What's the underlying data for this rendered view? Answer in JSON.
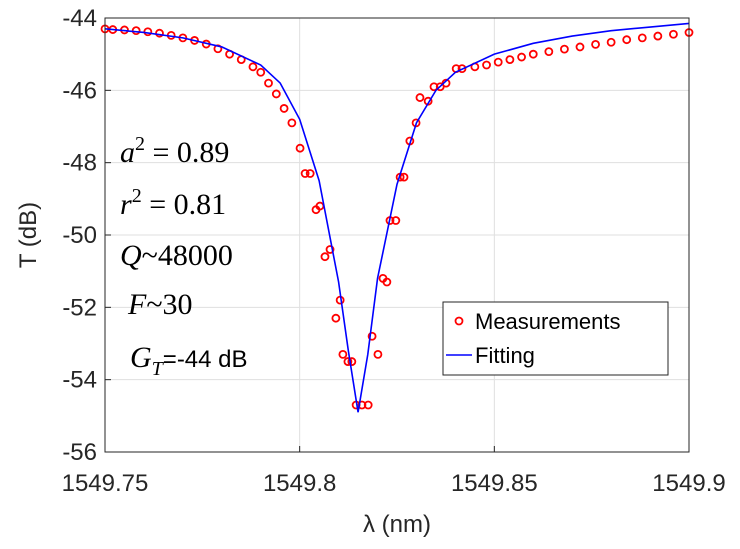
{
  "chart_data": {
    "type": "scatter",
    "x_label": "λ (nm)",
    "y_label": "T (dB)",
    "xlim": [
      1549.75,
      1549.9
    ],
    "xticks": [
      1549.75,
      1549.8,
      1549.85,
      1549.9
    ],
    "ylim": [
      -56,
      -44
    ],
    "yticks": [
      -56,
      -54,
      -52,
      -50,
      -48,
      -46,
      -44
    ],
    "grid": true,
    "legend_position": "lower-right",
    "annotations": [
      {
        "base": "a",
        "sup": "2",
        "rest": " = 0.89"
      },
      {
        "base": "r",
        "sup": "2",
        "rest": " = 0.81"
      },
      {
        "base": "Q",
        "rest": "~48000"
      },
      {
        "base": "F",
        "rest": "~30"
      },
      {
        "base": "G",
        "sub": "T",
        "rest": "=-44 dB"
      }
    ],
    "series": [
      {
        "name": "Measurements",
        "color": "#ff0000",
        "draw": "points",
        "x": [
          1549.75,
          1549.752,
          1549.755,
          1549.758,
          1549.761,
          1549.764,
          1549.767,
          1549.77,
          1549.773,
          1549.776,
          1549.779,
          1549.782,
          1549.785,
          1549.788,
          1549.79,
          1549.792,
          1549.794,
          1549.796,
          1549.798,
          1549.8001,
          1549.8014,
          1549.8027,
          1549.8042,
          1549.8052,
          1549.8065,
          1549.8078,
          1549.8093,
          1549.8104,
          1549.8111,
          1549.8124,
          1549.8134,
          1549.8145,
          1549.816,
          1549.8176,
          1549.8186,
          1549.8201,
          1549.8214,
          1549.8224,
          1549.8232,
          1549.8247,
          1549.8258,
          1549.8268,
          1549.8283,
          1549.8299,
          1549.8309,
          1549.833,
          1549.8345,
          1549.8361,
          1549.8376,
          1549.8402,
          1549.8417,
          1549.845,
          1549.848,
          1549.851,
          1549.854,
          1549.857,
          1549.86,
          1549.864,
          1549.868,
          1549.872,
          1549.876,
          1549.88,
          1549.884,
          1549.888,
          1549.892,
          1549.896,
          1549.9
        ],
        "values": [
          -44.3,
          -44.32,
          -44.33,
          -44.35,
          -44.38,
          -44.42,
          -44.48,
          -44.55,
          -44.62,
          -44.72,
          -44.85,
          -45.0,
          -45.15,
          -45.35,
          -45.5,
          -45.8,
          -46.1,
          -46.5,
          -46.9,
          -47.6,
          -48.3,
          -48.3,
          -49.3,
          -49.2,
          -50.6,
          -50.4,
          -52.3,
          -51.8,
          -53.3,
          -53.5,
          -53.5,
          -54.7,
          -54.7,
          -54.7,
          -52.8,
          -53.3,
          -51.2,
          -51.3,
          -49.6,
          -49.6,
          -48.4,
          -48.4,
          -47.4,
          -46.9,
          -46.2,
          -46.3,
          -45.9,
          -45.9,
          -45.8,
          -45.4,
          -45.4,
          -45.35,
          -45.3,
          -45.22,
          -45.15,
          -45.08,
          -45.0,
          -44.93,
          -44.86,
          -44.8,
          -44.73,
          -44.67,
          -44.6,
          -44.55,
          -44.5,
          -44.45,
          -44.4
        ]
      },
      {
        "name": "Fitting",
        "color": "#0000ff",
        "draw": "line",
        "x": [
          1549.75,
          1549.76,
          1549.77,
          1549.78,
          1549.79,
          1549.795,
          1549.8,
          1549.805,
          1549.81,
          1549.8125,
          1549.815,
          1549.8175,
          1549.82,
          1549.825,
          1549.83,
          1549.835,
          1549.84,
          1549.85,
          1549.86,
          1549.87,
          1549.88,
          1549.89,
          1549.9
        ],
        "values": [
          -44.3,
          -44.4,
          -44.55,
          -44.8,
          -45.3,
          -45.8,
          -46.8,
          -48.5,
          -51.3,
          -53.2,
          -54.9,
          -53.3,
          -51.2,
          -48.6,
          -46.9,
          -46.0,
          -45.5,
          -45.0,
          -44.7,
          -44.5,
          -44.35,
          -44.25,
          -44.15
        ]
      }
    ]
  }
}
